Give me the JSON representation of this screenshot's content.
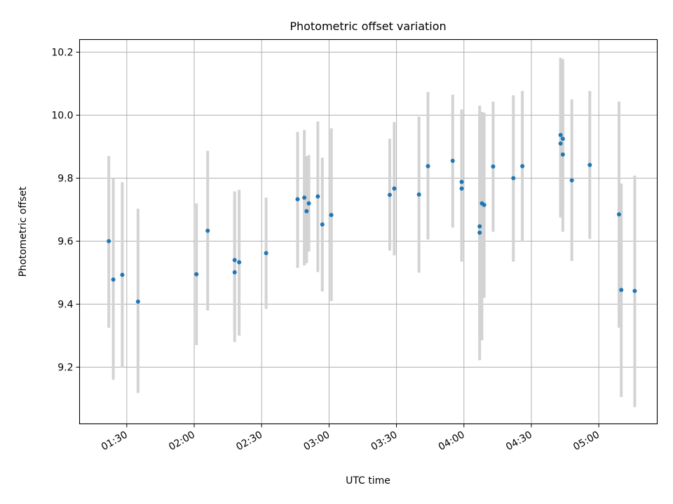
{
  "chart_data": {
    "type": "scatter",
    "title": "Photometric offset variation",
    "xlabel": "UTC time",
    "ylabel": "Photometric offset",
    "x_ticks": [
      "01:30",
      "02:00",
      "02:30",
      "03:00",
      "03:30",
      "04:00",
      "04:30",
      "05:00"
    ],
    "y_ticks": [
      "9.2",
      "9.4",
      "9.6",
      "9.8",
      "10.0",
      "10.2"
    ],
    "xlim": [
      "01:09",
      "05:26"
    ],
    "ylim": [
      9.02,
      10.24
    ],
    "grid": true,
    "legend": "none",
    "marker_color": "#1f77b4",
    "errorbar_color": "#d3d3d3",
    "points": [
      {
        "t": "01:22",
        "y": 9.6,
        "ylo": 9.325,
        "yhi": 9.87
      },
      {
        "t": "01:24",
        "y": 9.478,
        "ylo": 9.16,
        "yhi": 9.8
      },
      {
        "t": "01:28",
        "y": 9.493,
        "ylo": 9.2,
        "yhi": 9.787
      },
      {
        "t": "01:35",
        "y": 9.408,
        "ylo": 9.118,
        "yhi": 9.703
      },
      {
        "t": "02:01",
        "y": 9.495,
        "ylo": 9.27,
        "yhi": 9.72
      },
      {
        "t": "02:06",
        "y": 9.633,
        "ylo": 9.38,
        "yhi": 9.887
      },
      {
        "t": "02:18",
        "y": 9.54,
        "ylo": 9.32,
        "yhi": 9.758
      },
      {
        "t": "02:18",
        "y": 9.501,
        "ylo": 9.28,
        "yhi": 9.73
      },
      {
        "t": "02:20",
        "y": 9.533,
        "ylo": 9.3,
        "yhi": 9.763
      },
      {
        "t": "02:32",
        "y": 9.562,
        "ylo": 9.385,
        "yhi": 9.738
      },
      {
        "t": "02:46",
        "y": 9.733,
        "ylo": 9.515,
        "yhi": 9.947
      },
      {
        "t": "02:49",
        "y": 9.738,
        "ylo": 9.523,
        "yhi": 9.953
      },
      {
        "t": "02:50",
        "y": 9.695,
        "ylo": 9.53,
        "yhi": 9.87
      },
      {
        "t": "02:51",
        "y": 9.72,
        "ylo": 9.567,
        "yhi": 9.873
      },
      {
        "t": "02:55",
        "y": 9.742,
        "ylo": 9.502,
        "yhi": 9.98
      },
      {
        "t": "02:57",
        "y": 9.653,
        "ylo": 9.44,
        "yhi": 9.865
      },
      {
        "t": "03:01",
        "y": 9.683,
        "ylo": 9.41,
        "yhi": 9.958
      },
      {
        "t": "03:27",
        "y": 9.747,
        "ylo": 9.57,
        "yhi": 9.925
      },
      {
        "t": "03:29",
        "y": 9.767,
        "ylo": 9.555,
        "yhi": 9.978
      },
      {
        "t": "03:40",
        "y": 9.748,
        "ylo": 9.5,
        "yhi": 9.995
      },
      {
        "t": "03:44",
        "y": 9.838,
        "ylo": 9.605,
        "yhi": 10.073
      },
      {
        "t": "03:55",
        "y": 9.855,
        "ylo": 9.643,
        "yhi": 10.065
      },
      {
        "t": "03:59",
        "y": 9.767,
        "ylo": 9.535,
        "yhi": 10.0
      },
      {
        "t": "03:59",
        "y": 9.788,
        "ylo": 9.575,
        "yhi": 10.018
      },
      {
        "t": "04:07",
        "y": 9.627,
        "ylo": 9.222,
        "yhi": 10.03
      },
      {
        "t": "04:07",
        "y": 9.647,
        "ylo": 9.3,
        "yhi": 9.995
      },
      {
        "t": "04:08",
        "y": 9.72,
        "ylo": 9.285,
        "yhi": 10.01
      },
      {
        "t": "04:09",
        "y": 9.715,
        "ylo": 9.42,
        "yhi": 10.008
      },
      {
        "t": "04:13",
        "y": 9.837,
        "ylo": 9.63,
        "yhi": 10.043
      },
      {
        "t": "04:22",
        "y": 9.8,
        "ylo": 9.535,
        "yhi": 10.063
      },
      {
        "t": "04:26",
        "y": 9.838,
        "ylo": 9.598,
        "yhi": 10.077
      },
      {
        "t": "04:43",
        "y": 9.91,
        "ylo": 9.675,
        "yhi": 10.175
      },
      {
        "t": "04:43",
        "y": 9.937,
        "ylo": 9.68,
        "yhi": 10.182
      },
      {
        "t": "04:44",
        "y": 9.925,
        "ylo": 9.7,
        "yhi": 10.178
      },
      {
        "t": "04:44",
        "y": 9.875,
        "ylo": 9.63,
        "yhi": 10.12
      },
      {
        "t": "04:48",
        "y": 9.793,
        "ylo": 9.537,
        "yhi": 10.05
      },
      {
        "t": "04:56",
        "y": 9.842,
        "ylo": 9.607,
        "yhi": 10.077
      },
      {
        "t": "05:09",
        "y": 9.685,
        "ylo": 9.325,
        "yhi": 10.043
      },
      {
        "t": "05:10",
        "y": 9.445,
        "ylo": 9.105,
        "yhi": 9.783
      },
      {
        "t": "05:16",
        "y": 9.442,
        "ylo": 9.073,
        "yhi": 9.808
      }
    ]
  }
}
